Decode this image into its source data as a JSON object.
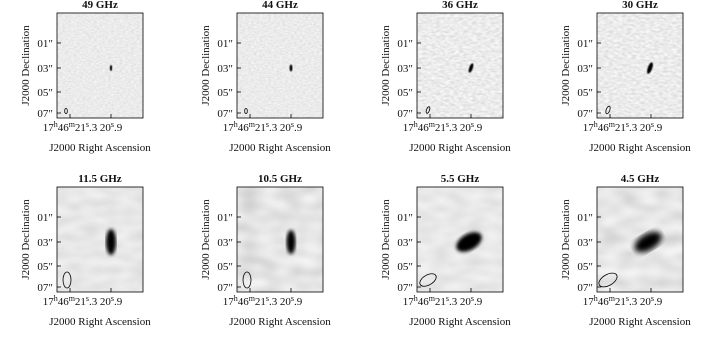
{
  "panels": [
    {
      "title": "49 GHz",
      "y_label": "J2000 Declination",
      "y_ticks": [
        "01″",
        "03″",
        "05″",
        "07″"
      ],
      "x_ticks": [
        [
          "17",
          "h",
          "46",
          "m",
          "21",
          "s",
          ".3"
        ],
        [
          "20",
          "s",
          ".9"
        ]
      ],
      "x_label": "J2000 Right Ascension"
    },
    {
      "title": "44 GHz",
      "y_label": "J2000 Declination",
      "y_ticks": [
        "01″",
        "03″",
        "05″",
        "07″"
      ],
      "x_ticks": [
        [
          "17",
          "h",
          "46",
          "m",
          "21",
          "s",
          ".3"
        ],
        [
          "20",
          "s",
          ".9"
        ]
      ],
      "x_label": "J2000 Right Ascension"
    },
    {
      "title": "36 GHz",
      "y_label": "J2000 Declination",
      "y_ticks": [
        "01″",
        "03″",
        "05″",
        "07″"
      ],
      "x_ticks": [
        [
          "17",
          "h",
          "46",
          "m",
          "21",
          "s",
          ".3"
        ],
        [
          "20",
          "s",
          ".9"
        ]
      ],
      "x_label": "J2000 Right Ascension"
    },
    {
      "title": "30 GHz",
      "y_label": "J2000 Declination",
      "y_ticks": [
        "01″",
        "03″",
        "05″",
        "07″"
      ],
      "x_ticks": [
        [
          "17",
          "h",
          "46",
          "m",
          "21",
          "s",
          ".3"
        ],
        [
          "20",
          "s",
          ".9"
        ]
      ],
      "x_label": "J2000 Right Ascension"
    },
    {
      "title": "11.5 GHz",
      "y_label": "J2000 Declination",
      "y_ticks": [
        "01″",
        "03″",
        "05″",
        "07″"
      ],
      "x_ticks": [
        [
          "17",
          "h",
          "46",
          "m",
          "21",
          "s",
          ".3"
        ],
        [
          "20",
          "s",
          ".9"
        ]
      ],
      "x_label": "J2000 Right Ascension"
    },
    {
      "title": "10.5 GHz",
      "y_label": "J2000 Declination",
      "y_ticks": [
        "01″",
        "03″",
        "05″",
        "07″"
      ],
      "x_ticks": [
        [
          "17",
          "h",
          "46",
          "m",
          "21",
          "s",
          ".3"
        ],
        [
          "20",
          "s",
          ".9"
        ]
      ],
      "x_label": "J2000 Right Ascension"
    },
    {
      "title": "5.5 GHz",
      "y_label": "J2000 Declination",
      "y_ticks": [
        "01″",
        "03″",
        "05″",
        "07″"
      ],
      "x_ticks": [
        [
          "17",
          "h",
          "46",
          "m",
          "21",
          "s",
          ".3"
        ],
        [
          "20",
          "s",
          ".9"
        ]
      ],
      "x_label": "J2000 Right Ascension"
    },
    {
      "title": "4.5 GHz",
      "y_label": "J2000 Declination",
      "y_ticks": [
        "01″",
        "03″",
        "05″",
        "07″"
      ],
      "x_ticks": [
        [
          "17",
          "h",
          "46",
          "m",
          "21",
          "s",
          ".3"
        ],
        [
          "20",
          "s",
          ".9"
        ]
      ],
      "x_label": "J2000 Right Ascension"
    }
  ]
}
